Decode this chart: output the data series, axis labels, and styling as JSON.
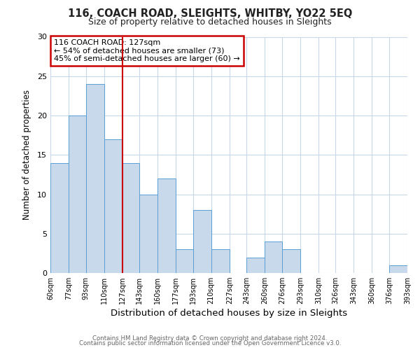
{
  "title": "116, COACH ROAD, SLEIGHTS, WHITBY, YO22 5EQ",
  "subtitle": "Size of property relative to detached houses in Sleights",
  "xlabel": "Distribution of detached houses by size in Sleights",
  "ylabel": "Number of detached properties",
  "bar_color": "#c9d9ec",
  "bar_edge_color": "#5a9fd4",
  "annotation_box_color": "#ffffff",
  "annotation_border_color": "#cc0000",
  "vline_color": "#cc0000",
  "background_color": "#ffffff",
  "grid_color": "#c8d8e8",
  "bins": [
    60,
    77,
    93,
    110,
    127,
    143,
    160,
    177,
    193,
    210,
    227,
    243,
    260,
    276,
    293,
    310,
    326,
    343,
    360,
    376,
    393
  ],
  "bin_labels": [
    "60sqm",
    "77sqm",
    "93sqm",
    "110sqm",
    "127sqm",
    "143sqm",
    "160sqm",
    "177sqm",
    "193sqm",
    "210sqm",
    "227sqm",
    "243sqm",
    "260sqm",
    "276sqm",
    "293sqm",
    "310sqm",
    "326sqm",
    "343sqm",
    "360sqm",
    "376sqm",
    "393sqm"
  ],
  "values": [
    14,
    20,
    24,
    17,
    14,
    10,
    12,
    3,
    8,
    3,
    0,
    2,
    4,
    3,
    0,
    0,
    0,
    0,
    0,
    1
  ],
  "vline_x": 127,
  "annotation_title": "116 COACH ROAD: 127sqm",
  "annotation_line1": "← 54% of detached houses are smaller (73)",
  "annotation_line2": "45% of semi-detached houses are larger (60) →",
  "ylim": [
    0,
    30
  ],
  "yticks": [
    0,
    5,
    10,
    15,
    20,
    25,
    30
  ],
  "footer1": "Contains HM Land Registry data © Crown copyright and database right 2024.",
  "footer2": "Contains public sector information licensed under the Open Government Licence v3.0."
}
